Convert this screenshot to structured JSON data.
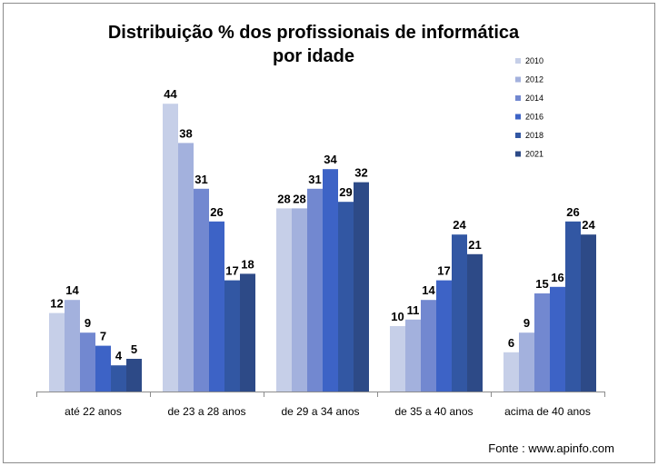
{
  "chart_data": {
    "type": "bar",
    "title_lines": [
      "Distribuição % dos profissionais de informática",
      "por idade"
    ],
    "categories": [
      "até 22 anos",
      "de 23 a 28 anos",
      "de 29 a 34 anos",
      "de 35 a 40 anos",
      "acima de 40 anos"
    ],
    "series": [
      {
        "name": "2010",
        "color": "#c6cfe8",
        "values": [
          12,
          44,
          28,
          10,
          6
        ]
      },
      {
        "name": "2012",
        "color": "#a3b1dd",
        "values": [
          14,
          38,
          28,
          11,
          9
        ]
      },
      {
        "name": "2014",
        "color": "#7288d0",
        "values": [
          9,
          31,
          31,
          14,
          15
        ]
      },
      {
        "name": "2016",
        "color": "#3d63c6",
        "values": [
          7,
          26,
          34,
          17,
          16
        ]
      },
      {
        "name": "2018",
        "color": "#3257a3",
        "values": [
          4,
          17,
          29,
          24,
          26
        ]
      },
      {
        "name": "2021",
        "color": "#2d4a87",
        "values": [
          5,
          18,
          32,
          21,
          24
        ]
      }
    ],
    "ylim": [
      0,
      45
    ],
    "grid": false,
    "legend_position": "top-right",
    "source": "Fonte : www.apinfo.com"
  }
}
